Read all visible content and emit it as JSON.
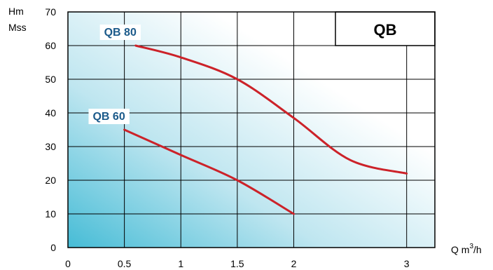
{
  "chart_data": {
    "type": "line",
    "model_label": "QB",
    "ylabel_lines": [
      "Hm",
      "Mss"
    ],
    "xlabel": "Q m",
    "xlabel_sup": "3",
    "xlabel_unit": "/h",
    "x_ticks": [
      {
        "value": 0,
        "label": "0"
      },
      {
        "value": 0.5,
        "label": "0.5"
      },
      {
        "value": 1,
        "label": "1"
      },
      {
        "value": 1.5,
        "label": "1.5"
      },
      {
        "value": 2,
        "label": "2"
      },
      {
        "value": 3,
        "label": "3"
      }
    ],
    "y_ticks": [
      0,
      10,
      20,
      30,
      40,
      50,
      60,
      70
    ],
    "xlim": [
      0,
      3.25
    ],
    "ylim": [
      0,
      70
    ],
    "grid": true,
    "series": [
      {
        "name": "QB 80",
        "x": [
          0.6,
          1.0,
          1.5,
          2.0,
          2.5,
          3.0
        ],
        "y": [
          60,
          56.5,
          50,
          38.5,
          26,
          22
        ]
      },
      {
        "name": "QB 60",
        "x": [
          0.5,
          1.0,
          1.5,
          2.0
        ],
        "y": [
          35,
          27.5,
          20,
          10
        ]
      }
    ],
    "colors": {
      "curve": "#cc2229",
      "series_label": "#1b5a8a",
      "fill_dark": "#46bcd6",
      "fill_light": "#ffffff"
    }
  }
}
